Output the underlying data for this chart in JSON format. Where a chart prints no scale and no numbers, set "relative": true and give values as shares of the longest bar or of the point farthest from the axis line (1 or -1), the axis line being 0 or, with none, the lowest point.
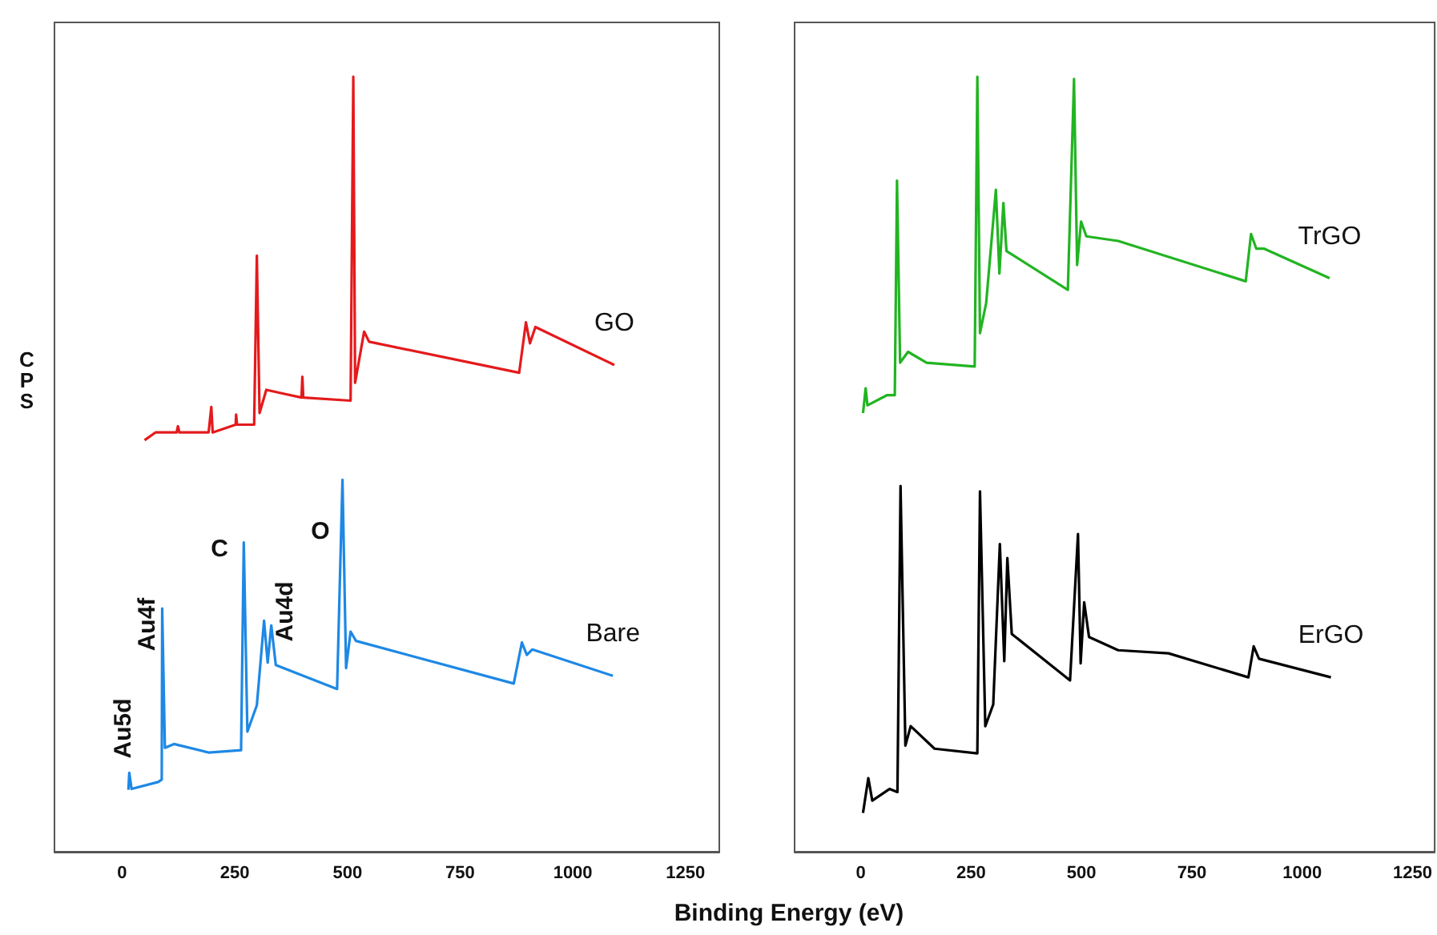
{
  "chart_data": [
    {
      "type": "line",
      "ylabel": "CPS",
      "xlabel": "Binding Energy (eV)",
      "relative": true,
      "xlim": [
        -150,
        1325
      ],
      "xticks": [
        0,
        250,
        500,
        750,
        1000,
        1250
      ],
      "annotations": [
        "Au5d",
        "Au4f",
        "C",
        "Au4d",
        "O"
      ],
      "series": [
        {
          "name": "GO",
          "color": "#e41a1c",
          "x": [
            50,
            74,
            121,
            124,
            127,
            192,
            198,
            201,
            252,
            253,
            255,
            293,
            299,
            305,
            320,
            358,
            398,
            400,
            402,
            507,
            513,
            517,
            537,
            548,
            881,
            896,
            905,
            917,
            1092
          ],
          "values": [
            0.531,
            0.541,
            0.541,
            0.549,
            0.541,
            0.541,
            0.574,
            0.541,
            0.551,
            0.564,
            0.551,
            0.551,
            0.769,
            0.566,
            0.596,
            0.591,
            0.586,
            0.613,
            0.586,
            0.582,
            1.0,
            0.605,
            0.671,
            0.658,
            0.618,
            0.683,
            0.656,
            0.677,
            0.628
          ]
        },
        {
          "name": "Bare",
          "color": "#1e88e5",
          "x": [
            14,
            16,
            21,
            80,
            88,
            89,
            95,
            115,
            192,
            264,
            270,
            278,
            299,
            315,
            323,
            331,
            341,
            477,
            489,
            497,
            507,
            519,
            869,
            887,
            898,
            910,
            1089
          ],
          "values": [
            0.08,
            0.102,
            0.081,
            0.09,
            0.093,
            0.314,
            0.134,
            0.139,
            0.128,
            0.131,
            0.399,
            0.155,
            0.189,
            0.298,
            0.244,
            0.292,
            0.241,
            0.21,
            0.48,
            0.237,
            0.284,
            0.272,
            0.217,
            0.27,
            0.254,
            0.261,
            0.227
          ]
        }
      ]
    },
    {
      "type": "line",
      "relative": true,
      "xlim": [
        -150,
        1300
      ],
      "xticks": [
        0,
        250,
        500,
        750,
        1000,
        1250
      ],
      "series": [
        {
          "name": "TrGO",
          "color": "#22b422",
          "x": [
            5,
            11,
            15,
            59,
            77,
            82,
            89,
            107,
            149,
            258,
            264,
            270,
            284,
            306,
            314,
            323,
            330,
            469,
            483,
            490,
            499,
            511,
            583,
            872,
            884,
            896,
            914,
            1062
          ],
          "values": [
            0.566,
            0.598,
            0.576,
            0.589,
            0.589,
            0.866,
            0.631,
            0.645,
            0.631,
            0.626,
            1.0,
            0.669,
            0.708,
            0.854,
            0.746,
            0.837,
            0.775,
            0.725,
            0.997,
            0.757,
            0.813,
            0.794,
            0.788,
            0.736,
            0.797,
            0.778,
            0.778,
            0.74
          ]
        },
        {
          "name": "ErGO",
          "color": "#000000",
          "x": [
            5,
            17,
            26,
            65,
            83,
            90,
            101,
            113,
            167,
            264,
            270,
            282,
            300,
            315,
            325,
            332,
            342,
            474,
            492,
            498,
            506,
            517,
            583,
            697,
            878,
            890,
            902,
            1065
          ],
          "values": [
            0.05,
            0.095,
            0.066,
            0.081,
            0.077,
            0.472,
            0.137,
            0.162,
            0.133,
            0.127,
            0.465,
            0.162,
            0.19,
            0.397,
            0.246,
            0.379,
            0.281,
            0.221,
            0.41,
            0.243,
            0.322,
            0.277,
            0.26,
            0.256,
            0.225,
            0.265,
            0.249,
            0.225
          ]
        }
      ]
    }
  ]
}
